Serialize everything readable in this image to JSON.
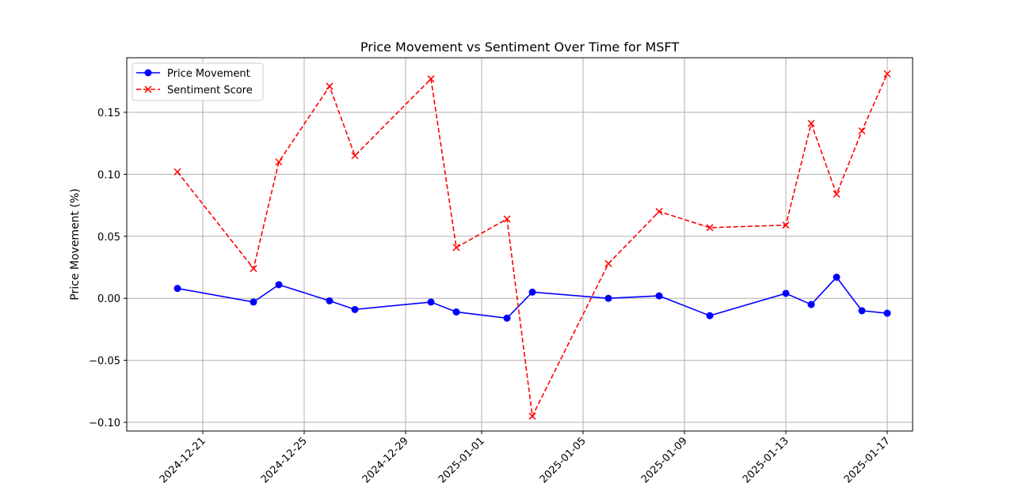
{
  "chart_data": {
    "type": "line",
    "title": "Price Movement vs Sentiment Over Time for MSFT",
    "xlabel": "",
    "ylabel": "Price Movement (%)",
    "ylim": [
      -0.107,
      0.194
    ],
    "xlim": [
      "2024-12-18",
      "2025-01-18"
    ],
    "grid": true,
    "legend_position": "top-left",
    "x_ticks": [
      "2024-12-21",
      "2024-12-25",
      "2024-12-29",
      "2025-01-01",
      "2025-01-05",
      "2025-01-09",
      "2025-01-13",
      "2025-01-17"
    ],
    "y_ticks": [
      "−0.10",
      "−0.05",
      "0.00",
      "0.05",
      "0.10",
      "0.15"
    ],
    "y_tick_values": [
      -0.1,
      -0.05,
      0.0,
      0.05,
      0.1,
      0.15
    ],
    "x": [
      "2024-12-20",
      "2024-12-23",
      "2024-12-24",
      "2024-12-26",
      "2024-12-27",
      "2024-12-30",
      "2024-12-31",
      "2025-01-02",
      "2025-01-03",
      "2025-01-06",
      "2025-01-08",
      "2025-01-10",
      "2025-01-13",
      "2025-01-14",
      "2025-01-15",
      "2025-01-16",
      "2025-01-17"
    ],
    "series": [
      {
        "name": "Price Movement",
        "color": "#0000ff",
        "marker": "circle",
        "line_style": "solid",
        "values": [
          0.008,
          -0.003,
          0.011,
          -0.002,
          -0.009,
          -0.003,
          -0.011,
          -0.016,
          0.005,
          0.0,
          0.002,
          -0.014,
          0.004,
          -0.005,
          0.017,
          -0.01,
          -0.012
        ]
      },
      {
        "name": "Sentiment Score",
        "color": "#ff0000",
        "marker": "x",
        "line_style": "dashed",
        "values": [
          0.102,
          0.024,
          0.11,
          0.171,
          0.115,
          0.177,
          0.041,
          0.064,
          -0.095,
          0.028,
          0.07,
          0.057,
          0.059,
          0.141,
          0.084,
          0.135,
          0.181
        ]
      }
    ]
  }
}
